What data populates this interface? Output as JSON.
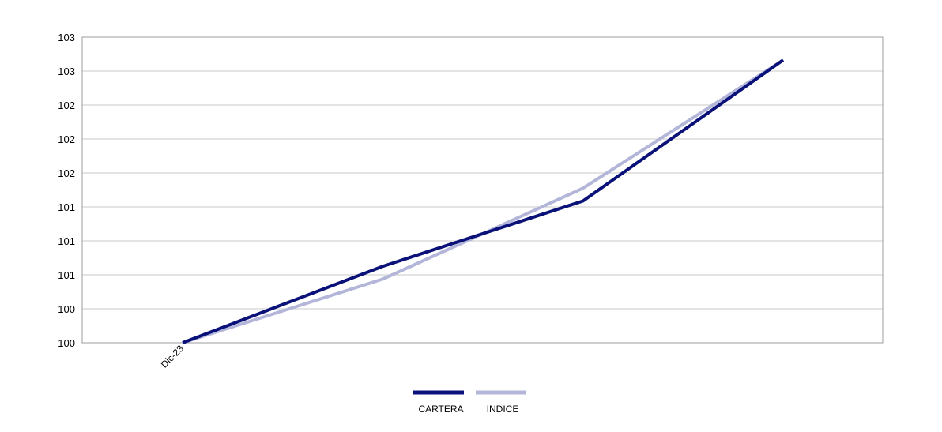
{
  "chart_data": {
    "type": "line",
    "categories": [
      "Dic-23",
      "",
      "",
      ""
    ],
    "y_tick_labels": [
      "100",
      "100",
      "101",
      "101",
      "101",
      "102",
      "102",
      "102",
      "103",
      "103"
    ],
    "ylim": [
      100,
      103.6
    ],
    "grid": true,
    "legend_position": "bottom",
    "series": [
      {
        "name": "CARTERA",
        "color": "#0a1178",
        "values": [
          100.0,
          100.9,
          101.67,
          103.33
        ]
      },
      {
        "name": "INDICE",
        "color": "#b3b6d9",
        "values": [
          100.0,
          100.75,
          101.82,
          103.33
        ]
      }
    ]
  }
}
